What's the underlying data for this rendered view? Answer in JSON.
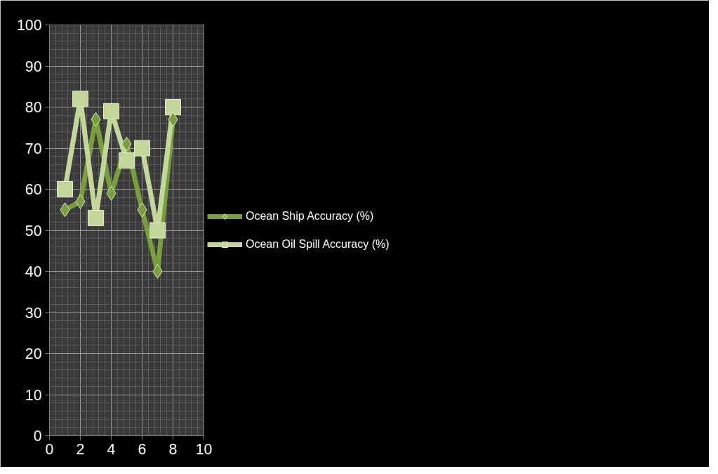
{
  "chart_data": {
    "type": "line",
    "x": [
      1,
      2,
      3,
      4,
      5,
      6,
      7,
      8
    ],
    "series": [
      {
        "name": "Ocean Ship Accuracy (%)",
        "color": "#77a03c",
        "marker": "diamond",
        "values": [
          55,
          57,
          77,
          59,
          71,
          55,
          40,
          77
        ]
      },
      {
        "name": "Ocean Oil Spill Accuracy (%)",
        "color": "#c4d79b",
        "marker": "square",
        "values": [
          60,
          82,
          53,
          79,
          67,
          70,
          50,
          80
        ]
      }
    ],
    "xlim": [
      0,
      10
    ],
    "xticks": [
      0,
      2,
      4,
      6,
      8,
      10
    ],
    "ylim": [
      0,
      100
    ],
    "yticks": [
      0,
      10,
      20,
      30,
      40,
      50,
      60,
      70,
      80,
      90,
      100
    ],
    "grid": true,
    "legend": "right"
  }
}
